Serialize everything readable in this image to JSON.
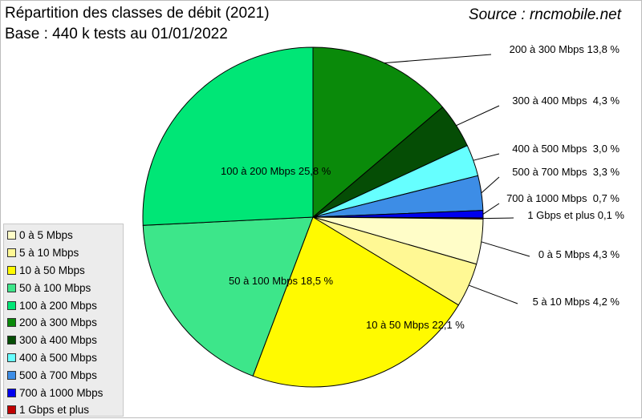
{
  "header": {
    "title_line1": "Répartition des classes de débit (2021)",
    "title_line2": "Base : 440 k tests au 01/01/2022",
    "source": "Source : rncmobile.net"
  },
  "colors": {
    "0a5": "#fffdc8",
    "5a10": "#fff894",
    "10a50": "#fffa00",
    "50a100": "#3de68a",
    "100a200": "#00e676",
    "200a300": "#0a8a0a",
    "300a400": "#054d05",
    "400a500": "#66ffff",
    "500a700": "#3d8de6",
    "700a1000": "#0000ee",
    "1g": "#c00000"
  },
  "chart_data": {
    "type": "pie",
    "legend_position": "bottom-left",
    "slices": [
      {
        "key": "200a300",
        "label": "200 à 300 Mbps",
        "value": 13.8,
        "value_text": "13,8 %",
        "color": "#0a8a0a",
        "label_text": "200 à 300 Mbps 13,8 %"
      },
      {
        "key": "300a400",
        "label": "300 à 400 Mbps",
        "value": 4.3,
        "value_text": "4,3 %",
        "color": "#054d05",
        "label_text": "300 à 400 Mbps  4,3 %"
      },
      {
        "key": "400a500",
        "label": "400 à 500 Mbps",
        "value": 3.0,
        "value_text": "3,0 %",
        "color": "#66ffff",
        "label_text": "400 à 500 Mbps  3,0 %"
      },
      {
        "key": "500a700",
        "label": "500 à 700 Mbps",
        "value": 3.3,
        "value_text": "3,3 %",
        "color": "#3d8de6",
        "label_text": "500 à 700 Mbps  3,3 %"
      },
      {
        "key": "700a1000",
        "label": "700 à 1000 Mbps",
        "value": 0.7,
        "value_text": "0,7 %",
        "color": "#0000ee",
        "label_text": "700 à 1000 Mbps  0,7 %"
      },
      {
        "key": "1g",
        "label": "1 Gbps et plus",
        "value": 0.1,
        "value_text": "0,1 %",
        "color": "#c00000",
        "label_text": "1 Gbps et plus 0,1 %"
      },
      {
        "key": "0a5",
        "label": "0 à 5 Mbps",
        "value": 4.3,
        "value_text": "4,3 %",
        "color": "#fffdc8",
        "label_text": "0 à 5 Mbps 4,3 %"
      },
      {
        "key": "5a10",
        "label": "5 à 10 Mbps",
        "value": 4.2,
        "value_text": "4,2 %",
        "color": "#fff894",
        "label_text": "5 à 10 Mbps 4,2 %"
      },
      {
        "key": "10a50",
        "label": "10 à 50 Mbps",
        "value": 22.1,
        "value_text": "22,1 %",
        "color": "#fffa00",
        "label_text": "10 à 50 Mbps 22,1 %"
      },
      {
        "key": "50a100",
        "label": "50 à 100 Mbps",
        "value": 18.5,
        "value_text": "18,5 %",
        "color": "#3de68a",
        "label_text": "50 à 100 Mbps 18,5 %"
      },
      {
        "key": "100a200",
        "label": "100 à 200 Mbps",
        "value": 25.8,
        "value_text": "25,8 %",
        "color": "#00e676",
        "label_text": "100 à 200 Mbps 25,8 %"
      }
    ],
    "legend": [
      {
        "label": "0 à 5 Mbps",
        "color": "#fffdc8"
      },
      {
        "label": "5 à 10 Mbps",
        "color": "#fff894"
      },
      {
        "label": "10 à 50 Mbps",
        "color": "#fffa00"
      },
      {
        "label": "50 à 100 Mbps",
        "color": "#3de68a"
      },
      {
        "label": "100 à 200 Mbps",
        "color": "#00e676"
      },
      {
        "label": "200 à 300 Mbps",
        "color": "#0a8a0a"
      },
      {
        "label": "300 à 400 Mbps",
        "color": "#054d05"
      },
      {
        "label": "400 à 500 Mbps",
        "color": "#66ffff"
      },
      {
        "label": "500 à 700 Mbps",
        "color": "#3d8de6"
      },
      {
        "label": "700 à 1000 Mbps",
        "color": "#0000ee"
      },
      {
        "label": "1 Gbps et plus",
        "color": "#c00000"
      }
    ]
  }
}
